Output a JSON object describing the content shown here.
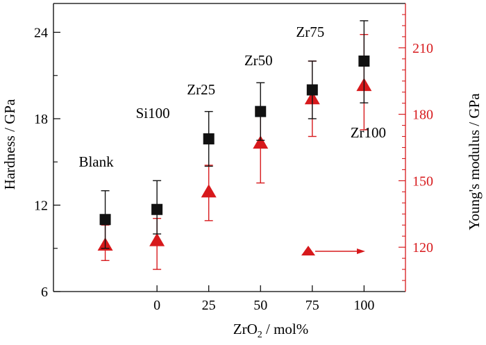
{
  "colors": {
    "hardness_series": "#111111",
    "modulus_series": "#d7191c",
    "axis_left": "#000000",
    "axis_right": "#d7191c"
  },
  "chart_data": {
    "type": "scatter",
    "x_label_parts": {
      "main": "ZrO",
      "sub": "2",
      "rest": " / mol%"
    },
    "xlabel": "ZrO2 / mol%",
    "ylabel_left": "Hardness / GPa",
    "ylabel_right": "Young's modulus / GPa",
    "x_ticks": [
      0,
      25,
      50,
      75,
      100
    ],
    "y_left_ticks": [
      6,
      12,
      18,
      24
    ],
    "y_left_range": [
      6,
      26
    ],
    "y_right_ticks": [
      120,
      150,
      180,
      210
    ],
    "y_right_range": [
      100,
      230
    ],
    "x_range": [
      -50,
      120
    ],
    "grid": false,
    "legend": "none",
    "samples": [
      {
        "label": "Blank",
        "x": -25,
        "hardness": 11.0,
        "hardness_err_up": 2.0,
        "hardness_err_down": 2.0,
        "modulus": 121,
        "modulus_err_up": 9,
        "modulus_err_down": 7
      },
      {
        "label": "Si100",
        "x": 0,
        "hardness": 11.7,
        "hardness_err_up": 2.0,
        "hardness_err_down": 1.7,
        "modulus": 123,
        "modulus_err_up": 10,
        "modulus_err_down": 13
      },
      {
        "label": "Zr25",
        "x": 25,
        "hardness": 16.6,
        "hardness_err_up": 1.9,
        "hardness_err_down": 1.9,
        "modulus": 145,
        "modulus_err_up": 12,
        "modulus_err_down": 13
      },
      {
        "label": "Zr50",
        "x": 50,
        "hardness": 18.5,
        "hardness_err_up": 2.0,
        "hardness_err_down": 2.0,
        "modulus": 167,
        "modulus_err_up": 15,
        "modulus_err_down": 18
      },
      {
        "label": "Zr75",
        "x": 75,
        "hardness": 20.0,
        "hardness_err_up": 2.0,
        "hardness_err_down": 2.0,
        "modulus": 187,
        "modulus_err_up": 17,
        "modulus_err_down": 17
      },
      {
        "label": "Zr100",
        "x": 100,
        "hardness": 22.0,
        "hardness_err_up": 2.8,
        "hardness_err_down": 2.9,
        "modulus": 193,
        "modulus_err_up": 23,
        "modulus_err_down": 20
      }
    ],
    "annotations": [
      "Blank",
      "Si100",
      "Zr25",
      "Zr50",
      "Zr75",
      "Zr100"
    ]
  }
}
